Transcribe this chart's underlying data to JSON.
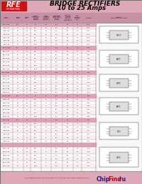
{
  "title_line1": "BRIDGE RECTIFIERS",
  "title_line2": "10 to 25 Amps",
  "header_bg": "#dea8b8",
  "table_header_bg": "#d4a0b0",
  "footer_bg": "#dea8b8",
  "footer_text": "RFE International  Tel: (416) 675-1858  Fax: (416) 675-0268  E-Mail: Sales@rfein.com",
  "logo_color": "#cc1111",
  "logo_text": "RFE",
  "logo_sub": "INTERNATIONAL",
  "watermark_chip": "Chip",
  "watermark_find": "Find",
  "watermark_ru": ".ru",
  "watermark_color_chip": "#1a1a99",
  "watermark_color_find": "#cc0000",
  "watermark_color_ru": "#1a1a99",
  "page_bg": "#ffffff",
  "col_header_bg": "#c890a4",
  "row_odd_bg": "#f9eef2",
  "row_even_bg": "#ffffff",
  "section_header_bg": "#e0a0b5",
  "grid_color": "#c8a0b0",
  "right_panel_bg": "#f8f8f8"
}
